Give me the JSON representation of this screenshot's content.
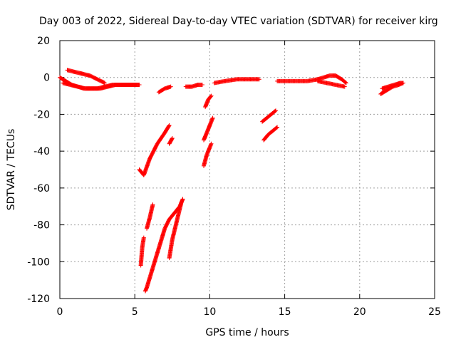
{
  "chart_data": {
    "type": "scatter",
    "title": "Day 003 of 2022, Sidereal Day-to-day VTEC variation (SDTVAR) for receiver kirg",
    "xlabel": "GPS time / hours",
    "ylabel": "SDTVAR / TECUs",
    "xlim": [
      0,
      25
    ],
    "ylim": [
      -120,
      20
    ],
    "xticks": [
      0,
      5,
      10,
      15,
      20,
      25
    ],
    "yticks": [
      -120,
      -100,
      -80,
      -60,
      -40,
      -20,
      0,
      20
    ],
    "grid": true,
    "marker": "+",
    "color": "#ff0000",
    "series": [
      {
        "x": [
          0.0,
          0.4,
          0.8,
          1.2,
          1.6,
          2.0,
          2.5,
          3.0,
          3.5,
          4.0,
          4.5,
          5.0,
          5.3
        ],
        "y": [
          0,
          -2,
          -4,
          -5,
          -6,
          -6,
          -6,
          -5,
          -4,
          -4,
          -4,
          -4,
          -4
        ]
      },
      {
        "x": [
          0.5,
          1.0,
          1.5,
          2.0,
          2.5,
          3.0
        ],
        "y": [
          4,
          3,
          2,
          1,
          -1,
          -3
        ]
      },
      {
        "x": [
          0.2,
          0.7,
          1.2,
          1.7,
          2.2,
          2.7,
          3.2,
          3.7,
          4.2,
          4.8,
          5.3
        ],
        "y": [
          -3,
          -4,
          -5,
          -6,
          -6,
          -6,
          -5,
          -4,
          -4,
          -4,
          -4
        ]
      },
      {
        "x": [
          5.3,
          5.6,
          6.0,
          6.5,
          7.0,
          7.3
        ],
        "y": [
          -50,
          -53,
          -44,
          -36,
          -30,
          -26
        ]
      },
      {
        "x": [
          5.7,
          5.8,
          6.1,
          6.4,
          6.7,
          7.0,
          7.3,
          7.6,
          8.0,
          8.2
        ],
        "y": [
          -116,
          -114,
          -106,
          -98,
          -90,
          -82,
          -77,
          -74,
          -70,
          -66
        ]
      },
      {
        "x": [
          5.8,
          6.0,
          6.2
        ],
        "y": [
          -82,
          -76,
          -69
        ]
      },
      {
        "x": [
          5.4,
          5.5,
          5.6
        ],
        "y": [
          -102,
          -92,
          -87
        ]
      },
      {
        "x": [
          7.3,
          7.5,
          7.8,
          8.1
        ],
        "y": [
          -98,
          -88,
          -78,
          -68
        ]
      },
      {
        "x": [
          6.6,
          7.0,
          7.4
        ],
        "y": [
          -8,
          -6,
          -5
        ]
      },
      {
        "x": [
          7.3,
          7.5
        ],
        "y": [
          -36,
          -33
        ]
      },
      {
        "x": [
          8.4,
          8.8,
          9.2,
          9.5
        ],
        "y": [
          -5,
          -5,
          -4,
          -4
        ]
      },
      {
        "x": [
          9.6,
          9.8,
          10.1
        ],
        "y": [
          -48,
          -42,
          -36
        ]
      },
      {
        "x": [
          9.6,
          9.8,
          10.0,
          10.2
        ],
        "y": [
          -34,
          -30,
          -26,
          -22
        ]
      },
      {
        "x": [
          9.7,
          9.9,
          10.1
        ],
        "y": [
          -16,
          -12,
          -10
        ]
      },
      {
        "x": [
          10.3,
          11.0,
          11.8,
          12.5,
          13.3
        ],
        "y": [
          -3,
          -2,
          -1,
          -1,
          -1
        ]
      },
      {
        "x": [
          13.5,
          13.8,
          14.1,
          14.4
        ],
        "y": [
          -24,
          -22,
          -20,
          -18
        ]
      },
      {
        "x": [
          13.6,
          13.9,
          14.2,
          14.5
        ],
        "y": [
          -34,
          -31,
          -29,
          -27
        ]
      },
      {
        "x": [
          14.5,
          15.5,
          16.5,
          17.2
        ],
        "y": [
          -2,
          -2,
          -2,
          -1
        ]
      },
      {
        "x": [
          17.2,
          17.6,
          18.0,
          18.4,
          18.8,
          19.1
        ],
        "y": [
          -1,
          0,
          1,
          1,
          -1,
          -3
        ]
      },
      {
        "x": [
          17.2,
          17.8,
          18.4,
          19.0
        ],
        "y": [
          -2,
          -3,
          -4,
          -5
        ]
      },
      {
        "x": [
          21.4,
          21.8,
          22.2,
          22.6,
          22.9
        ],
        "y": [
          -9,
          -7,
          -5,
          -4,
          -3
        ]
      },
      {
        "x": [
          21.5,
          21.9,
          22.3,
          22.7,
          22.9
        ],
        "y": [
          -6,
          -5,
          -4,
          -3,
          -3
        ]
      }
    ]
  }
}
